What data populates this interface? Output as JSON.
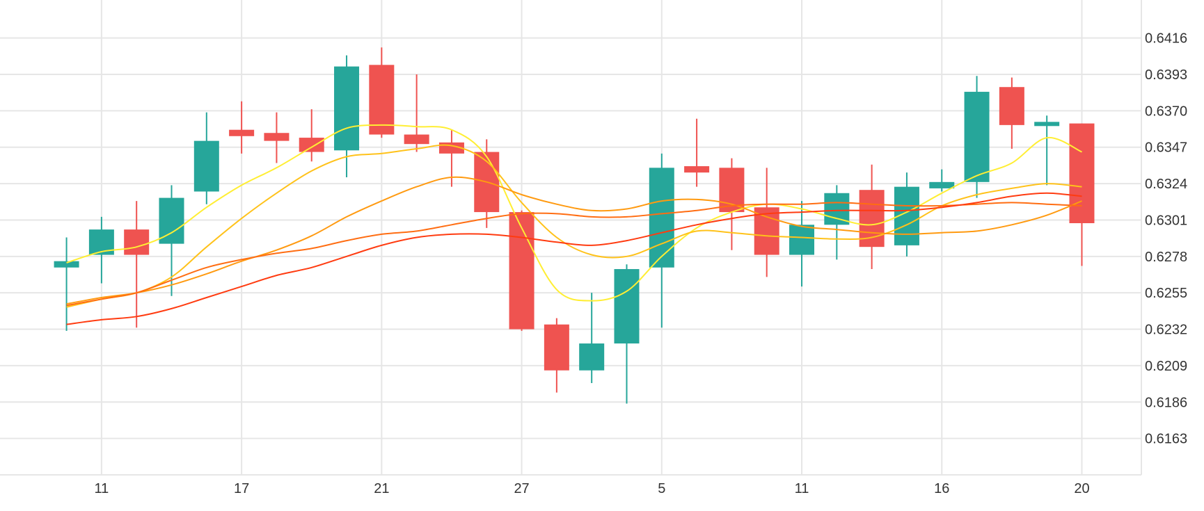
{
  "colors": {
    "background": "#ffffff",
    "grid": "#e6e6e6",
    "up": "#26a69a",
    "down": "#ef5350",
    "axis_text": "#333333"
  },
  "chart_data": {
    "type": "candlestick",
    "title": "",
    "xlabel": "",
    "ylabel": "",
    "grid": true,
    "legend": "none",
    "y_axis_position": "right",
    "ylim": [
      0.614,
      0.644
    ],
    "y_ticks": [
      "0.6416",
      "0.6393",
      "0.6370",
      "0.6347",
      "0.6324",
      "0.6301",
      "0.6278",
      "0.6255",
      "0.6232",
      "0.6209",
      "0.6186",
      "0.6163"
    ],
    "x_range": [
      -1.9,
      30.7
    ],
    "x_ticks": [
      {
        "label": "11",
        "index": 1
      },
      {
        "label": "17",
        "index": 5
      },
      {
        "label": "21",
        "index": 9
      },
      {
        "label": "27",
        "index": 13
      },
      {
        "label": "5",
        "index": 17
      },
      {
        "label": "11",
        "index": 21
      },
      {
        "label": "16",
        "index": 25
      },
      {
        "label": "20",
        "index": 29
      }
    ],
    "candles": [
      {
        "i": 0,
        "open": 0.6271,
        "high": 0.629,
        "low": 0.6231,
        "close": 0.6275
      },
      {
        "i": 1,
        "open": 0.6279,
        "high": 0.6303,
        "low": 0.6261,
        "close": 0.6295
      },
      {
        "i": 2,
        "open": 0.6295,
        "high": 0.6313,
        "low": 0.6233,
        "close": 0.6279
      },
      {
        "i": 3,
        "open": 0.6286,
        "high": 0.6323,
        "low": 0.6253,
        "close": 0.6315
      },
      {
        "i": 4,
        "open": 0.6319,
        "high": 0.6369,
        "low": 0.6311,
        "close": 0.6351
      },
      {
        "i": 5,
        "open": 0.6358,
        "high": 0.6376,
        "low": 0.6343,
        "close": 0.6354
      },
      {
        "i": 6,
        "open": 0.6356,
        "high": 0.6369,
        "low": 0.6337,
        "close": 0.6351
      },
      {
        "i": 7,
        "open": 0.6353,
        "high": 0.6371,
        "low": 0.6338,
        "close": 0.6344
      },
      {
        "i": 8,
        "open": 0.6345,
        "high": 0.6405,
        "low": 0.6328,
        "close": 0.6398
      },
      {
        "i": 9,
        "open": 0.6399,
        "high": 0.641,
        "low": 0.6353,
        "close": 0.6355
      },
      {
        "i": 10,
        "open": 0.6355,
        "high": 0.6393,
        "low": 0.6344,
        "close": 0.6349
      },
      {
        "i": 11,
        "open": 0.635,
        "high": 0.6358,
        "low": 0.6322,
        "close": 0.6343
      },
      {
        "i": 12,
        "open": 0.6344,
        "high": 0.6352,
        "low": 0.6296,
        "close": 0.6306
      },
      {
        "i": 13,
        "open": 0.6306,
        "high": 0.6307,
        "low": 0.6231,
        "close": 0.6232
      },
      {
        "i": 14,
        "open": 0.6235,
        "high": 0.6239,
        "low": 0.6192,
        "close": 0.6206
      },
      {
        "i": 15,
        "open": 0.6206,
        "high": 0.6255,
        "low": 0.6198,
        "close": 0.6223
      },
      {
        "i": 16,
        "open": 0.6223,
        "high": 0.6273,
        "low": 0.6185,
        "close": 0.627
      },
      {
        "i": 17,
        "open": 0.6271,
        "high": 0.6343,
        "low": 0.6233,
        "close": 0.6334
      },
      {
        "i": 18,
        "open": 0.6335,
        "high": 0.6365,
        "low": 0.6322,
        "close": 0.6331
      },
      {
        "i": 19,
        "open": 0.6334,
        "high": 0.634,
        "low": 0.6282,
        "close": 0.6306
      },
      {
        "i": 20,
        "open": 0.6309,
        "high": 0.6334,
        "low": 0.6265,
        "close": 0.6279
      },
      {
        "i": 21,
        "open": 0.6279,
        "high": 0.6313,
        "low": 0.6259,
        "close": 0.6298
      },
      {
        "i": 22,
        "open": 0.6298,
        "high": 0.6323,
        "low": 0.6276,
        "close": 0.6318
      },
      {
        "i": 23,
        "open": 0.632,
        "high": 0.6336,
        "low": 0.627,
        "close": 0.6284
      },
      {
        "i": 24,
        "open": 0.6285,
        "high": 0.6331,
        "low": 0.6278,
        "close": 0.6322
      },
      {
        "i": 25,
        "open": 0.6321,
        "high": 0.6333,
        "low": 0.6319,
        "close": 0.6325
      },
      {
        "i": 26,
        "open": 0.6325,
        "high": 0.6392,
        "low": 0.6315,
        "close": 0.6382
      },
      {
        "i": 27,
        "open": 0.6385,
        "high": 0.6391,
        "low": 0.6346,
        "close": 0.6361
      },
      {
        "i": 28,
        "open": 0.6361,
        "high": 0.6367,
        "low": 0.6323,
        "close": 0.6363
      },
      {
        "i": 29,
        "open": 0.6362,
        "high": 0.6362,
        "low": 0.6272,
        "close": 0.6299
      }
    ],
    "series": [
      {
        "color": "#ffee33",
        "values": [
          0.6274,
          0.6281,
          0.6284,
          0.6293,
          0.6309,
          0.6323,
          0.6334,
          0.6347,
          0.6359,
          0.6361,
          0.636,
          0.6358,
          0.6341,
          0.6296,
          0.6257,
          0.625,
          0.6256,
          0.6278,
          0.6296,
          0.6306,
          0.6311,
          0.6308,
          0.6302,
          0.6298,
          0.6306,
          0.6318,
          0.6329,
          0.6337,
          0.6353,
          0.6344
        ]
      },
      {
        "color": "#ffc21a",
        "values": [
          0.6246,
          0.6251,
          0.6255,
          0.6265,
          0.6284,
          0.6302,
          0.6318,
          0.6332,
          0.6341,
          0.6343,
          0.6346,
          0.6348,
          0.6338,
          0.6312,
          0.629,
          0.6279,
          0.6278,
          0.6286,
          0.6294,
          0.6293,
          0.6291,
          0.629,
          0.6289,
          0.629,
          0.6298,
          0.631,
          0.6317,
          0.6321,
          0.6324,
          0.6322
        ]
      },
      {
        "color": "#ff9a10",
        "values": [
          0.6248,
          0.6252,
          0.6255,
          0.626,
          0.6267,
          0.6275,
          0.6282,
          0.6291,
          0.6303,
          0.6313,
          0.6322,
          0.6328,
          0.6325,
          0.6317,
          0.6311,
          0.6307,
          0.6308,
          0.6313,
          0.6314,
          0.6311,
          0.6303,
          0.6297,
          0.6295,
          0.6293,
          0.6292,
          0.6293,
          0.6294,
          0.6298,
          0.6304,
          0.6313
        ]
      },
      {
        "color": "#ff6d12",
        "values": [
          0.6247,
          0.6251,
          0.6255,
          0.6263,
          0.6271,
          0.6276,
          0.628,
          0.6283,
          0.6288,
          0.6292,
          0.6294,
          0.6298,
          0.6302,
          0.6305,
          0.6305,
          0.6303,
          0.6303,
          0.6305,
          0.6307,
          0.631,
          0.6311,
          0.6311,
          0.6312,
          0.6311,
          0.631,
          0.631,
          0.6311,
          0.6312,
          0.6311,
          0.631
        ]
      },
      {
        "color": "#ff3b10",
        "values": [
          0.6235,
          0.6238,
          0.624,
          0.6245,
          0.6252,
          0.6259,
          0.6266,
          0.6271,
          0.6278,
          0.6285,
          0.629,
          0.6292,
          0.6292,
          0.629,
          0.6287,
          0.6285,
          0.6288,
          0.6293,
          0.6298,
          0.6302,
          0.6305,
          0.6306,
          0.6307,
          0.6307,
          0.6307,
          0.6309,
          0.6312,
          0.6316,
          0.6318,
          0.6316
        ]
      }
    ]
  }
}
